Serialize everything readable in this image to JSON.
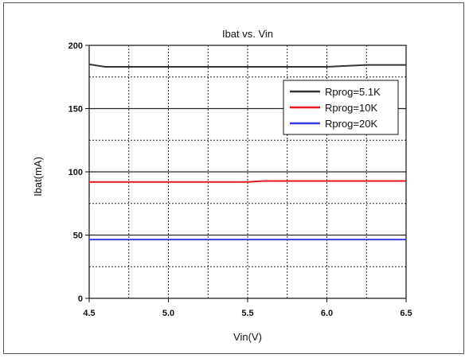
{
  "chart_data": {
    "type": "line",
    "title": "Ibat vs. Vin",
    "xlabel": "Vin(V)",
    "ylabel": "Ibat(mA)",
    "xlim": [
      4.5,
      6.5
    ],
    "ylim": [
      0,
      200
    ],
    "x_ticks": [
      "4.5",
      "5.0",
      "5.5",
      "6.0",
      "6.5"
    ],
    "y_ticks": [
      "0",
      "50",
      "100",
      "150",
      "200"
    ],
    "grid": true,
    "legend_position": "top-right",
    "series": [
      {
        "name": "Rprog=5.1K",
        "color": "#333333",
        "x": [
          4.5,
          4.6,
          5.0,
          5.5,
          6.0,
          6.25,
          6.5
        ],
        "y": [
          185,
          183,
          183,
          183,
          183,
          184.5,
          184.5
        ]
      },
      {
        "name": "Rprog=10K",
        "color": "#e8141c",
        "x": [
          4.5,
          5.0,
          5.5,
          5.6,
          6.0,
          6.5
        ],
        "y": [
          92,
          92,
          92,
          92.8,
          92.8,
          92.8
        ]
      },
      {
        "name": "Rprog=20K",
        "color": "#3a3ae6",
        "x": [
          4.5,
          5.0,
          5.5,
          6.0,
          6.5
        ],
        "y": [
          46.5,
          46.5,
          46.5,
          46.5,
          46.5
        ]
      }
    ]
  }
}
